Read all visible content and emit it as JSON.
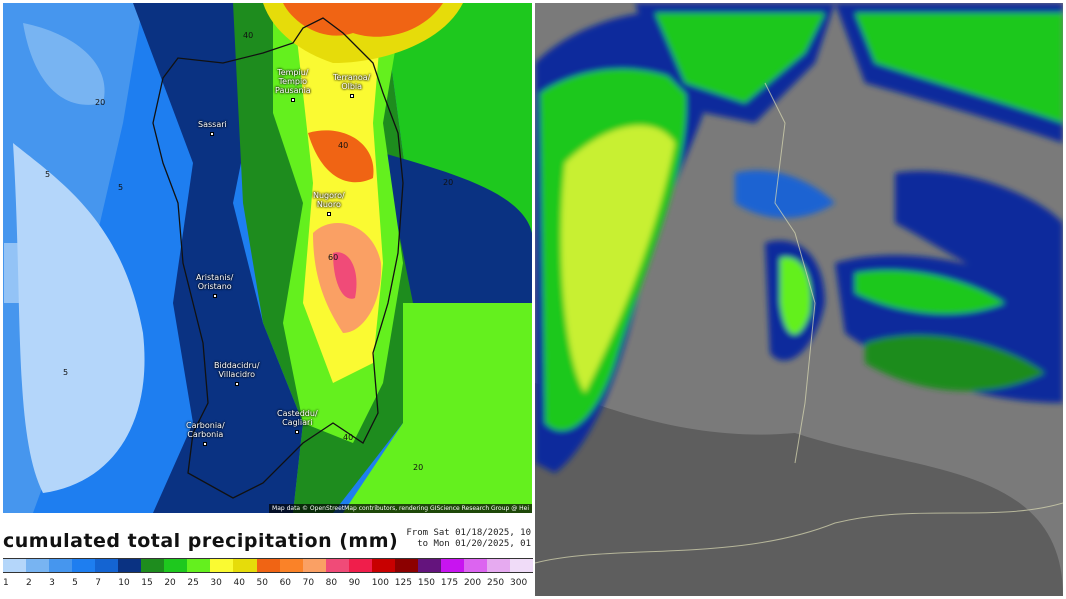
{
  "precip_map": {
    "title": "cumulated total precipitation (mm)",
    "period_from": "From Sat 01/18/2025, 10",
    "period_to": "to Mon 01/20/2025, 01",
    "attribution": "Map data © OpenStreetMap contributors, rendering GIScience Research Group @ Hei",
    "cities": [
      {
        "name": "Tempiu/\nTempio\nPausania"
      },
      {
        "name": "Terranoa/\nOlbia"
      },
      {
        "name": "Sassari"
      },
      {
        "name": "Nugoro/\nNuoro"
      },
      {
        "name": "Aristanis/\nOristano"
      },
      {
        "name": "Biddacidru/\nVillacidro"
      },
      {
        "name": "Carbonia/\nCarbonia"
      },
      {
        "name": "Casteddu/\nCagliari"
      }
    ],
    "contour_labels": [
      "5",
      "20",
      "40",
      "60",
      "80"
    ],
    "legend": {
      "ticks": [
        "1",
        "2",
        "3",
        "5",
        "7",
        "10",
        "15",
        "20",
        "25",
        "30",
        "40",
        "50",
        "60",
        "70",
        "80",
        "90",
        "100",
        "125",
        "150",
        "175",
        "200",
        "250",
        "300"
      ],
      "colors": [
        "#b4d6fa",
        "#78b4f2",
        "#4696ee",
        "#1e7ef0",
        "#1464d2",
        "#0a3282",
        "#1e8c1e",
        "#1ec81e",
        "#64f01e",
        "#fafa32",
        "#e6dc0a",
        "#f06414",
        "#fa8228",
        "#faa064",
        "#f04b78",
        "#f01e4b",
        "#c80000",
        "#8c0000",
        "#64147d",
        "#c814f0",
        "#dc64f0",
        "#e6aaf0",
        "#f0dcf8"
      ]
    }
  },
  "satellite_image": {}
}
